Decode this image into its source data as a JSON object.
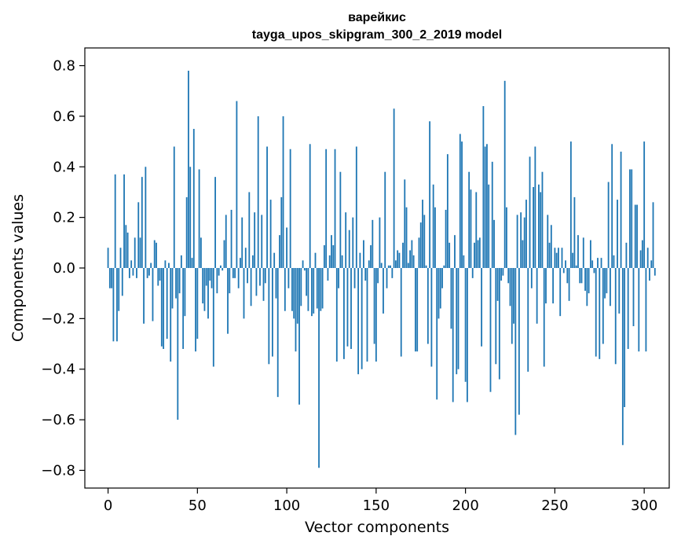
{
  "chart_data": {
    "type": "bar",
    "title": "варейкис",
    "subtitle": "tayga_upos_skipgram_300_2_2019 model",
    "xlabel": "Vector components",
    "ylabel": "Components values",
    "xlim": [
      -13,
      314
    ],
    "ylim": [
      -0.87,
      0.87
    ],
    "xticks": [
      0,
      50,
      100,
      150,
      200,
      250,
      300
    ],
    "yticks": [
      0.8,
      0.6,
      0.4,
      0.2,
      0.0,
      -0.2,
      -0.4,
      -0.6,
      -0.8
    ],
    "ytick_labels": [
      "0.8",
      "0.6",
      "0.4",
      "0.2",
      "0.0",
      "−0.2",
      "−0.4",
      "−0.6",
      "−0.8"
    ],
    "grid": false,
    "bar_color": "#1f77b4",
    "values": [
      0.08,
      -0.08,
      -0.08,
      -0.29,
      0.37,
      -0.29,
      -0.17,
      0.08,
      -0.11,
      0.37,
      0.17,
      0.14,
      -0.04,
      0.03,
      -0.03,
      0.12,
      -0.04,
      0.26,
      0.12,
      0.36,
      -0.22,
      0.4,
      -0.04,
      -0.03,
      0.02,
      -0.21,
      0.11,
      0.1,
      -0.07,
      -0.05,
      -0.31,
      -0.32,
      0.03,
      -0.28,
      0.02,
      -0.37,
      -0.16,
      0.48,
      -0.12,
      -0.6,
      -0.1,
      0.05,
      -0.32,
      -0.19,
      0.28,
      0.78,
      0.4,
      0.04,
      0.55,
      -0.33,
      -0.28,
      0.39,
      0.12,
      -0.14,
      -0.17,
      -0.07,
      -0.2,
      -0.05,
      -0.08,
      -0.39,
      0.36,
      -0.1,
      -0.03,
      0.01,
      -0.01,
      0.11,
      0.21,
      -0.26,
      -0.1,
      0.23,
      -0.04,
      -0.04,
      0.66,
      -0.08,
      0.04,
      0.2,
      -0.2,
      0.08,
      -0.06,
      0.3,
      -0.15,
      0.05,
      0.22,
      -0.11,
      0.6,
      -0.07,
      0.21,
      -0.13,
      -0.06,
      0.48,
      -0.38,
      0.27,
      -0.35,
      0.06,
      -0.12,
      -0.51,
      0.13,
      0.28,
      0.6,
      -0.17,
      0.16,
      -0.08,
      0.47,
      -0.17,
      -0.2,
      -0.33,
      -0.22,
      -0.54,
      -0.15,
      0.03,
      -0.01,
      -0.11,
      -0.17,
      0.49,
      -0.19,
      -0.18,
      0.06,
      -0.16,
      -0.79,
      -0.17,
      -0.16,
      0.09,
      0.47,
      -0.05,
      0.05,
      0.13,
      0.09,
      0.47,
      -0.37,
      -0.08,
      0.38,
      0.05,
      -0.36,
      0.22,
      -0.31,
      0.15,
      -0.32,
      0.2,
      -0.08,
      0.48,
      -0.42,
      0.06,
      -0.4,
      0.11,
      -0.05,
      -0.37,
      0.03,
      0.09,
      0.19,
      -0.3,
      -0.37,
      -0.06,
      0.2,
      0.02,
      -0.18,
      0.38,
      -0.08,
      0.01,
      0.01,
      -0.04,
      0.63,
      0.03,
      0.07,
      0.06,
      -0.35,
      0.1,
      0.35,
      0.24,
      0.02,
      0.07,
      0.11,
      0.05,
      -0.33,
      -0.33,
      0.12,
      0.18,
      0.27,
      0.21,
      0.01,
      -0.3,
      0.58,
      -0.39,
      0.33,
      0.24,
      -0.52,
      -0.2,
      -0.16,
      -0.08,
      0.01,
      0.23,
      0.45,
      0.1,
      -0.24,
      -0.53,
      0.13,
      -0.42,
      -0.4,
      0.53,
      0.5,
      0.05,
      -0.45,
      -0.53,
      0.38,
      0.31,
      -0.04,
      0.1,
      0.3,
      0.11,
      0.12,
      -0.31,
      0.64,
      0.48,
      0.49,
      0.33,
      -0.49,
      0.42,
      0.19,
      -0.38,
      -0.13,
      -0.44,
      -0.05,
      -0.03,
      0.74,
      0.24,
      -0.06,
      -0.15,
      -0.3,
      -0.22,
      -0.66,
      0.21,
      -0.58,
      0.22,
      0.11,
      0.2,
      0.27,
      -0.41,
      0.44,
      -0.08,
      0.32,
      0.48,
      -0.22,
      0.33,
      0.3,
      0.38,
      -0.39,
      -0.14,
      0.21,
      0.1,
      0.17,
      -0.14,
      0.08,
      0.06,
      0.08,
      -0.19,
      0.08,
      -0.02,
      0.03,
      -0.06,
      -0.13,
      0.5,
      0.06,
      0.28,
      0.01,
      0.13,
      -0.06,
      -0.06,
      0.12,
      -0.09,
      -0.15,
      -0.1,
      0.11,
      0.03,
      -0.02,
      -0.35,
      0.04,
      -0.36,
      0.04,
      -0.3,
      -0.12,
      -0.1,
      0.34,
      -0.15,
      0.49,
      0.05,
      -0.38,
      0.27,
      -0.18,
      0.46,
      -0.7,
      -0.55,
      0.1,
      -0.32,
      0.39,
      0.39,
      -0.23,
      0.25,
      0.25,
      -0.33,
      0.07,
      0.11,
      0.5,
      -0.33,
      0.08,
      -0.05,
      0.03,
      0.26,
      -0.03
    ]
  }
}
